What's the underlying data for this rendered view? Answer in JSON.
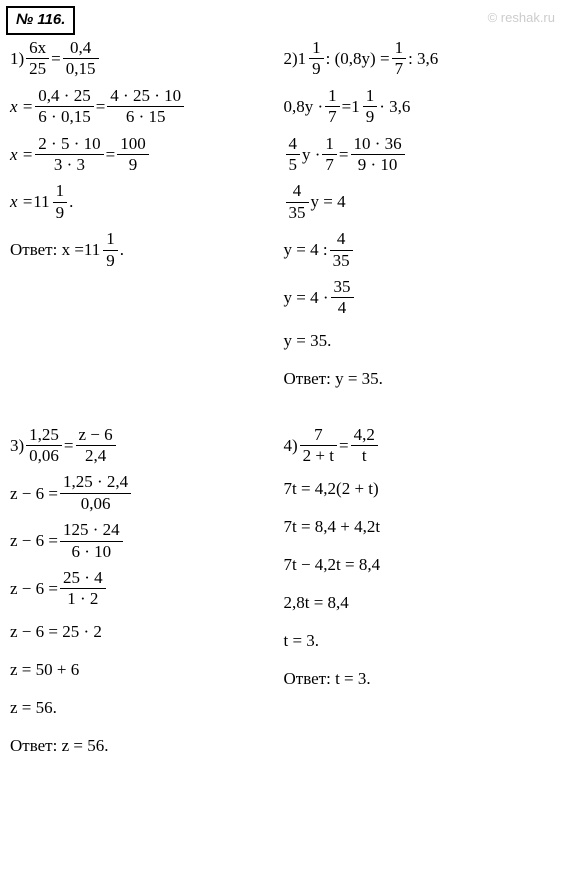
{
  "badge": "№ 116.",
  "watermark": "© reshak.ru",
  "colors": {
    "text": "#000000",
    "background": "#ffffff",
    "watermark": "#cccccc"
  },
  "typography": {
    "body_font": "Times New Roman",
    "body_fontsize": 17,
    "badge_font": "Arial",
    "badge_fontsize": 15
  },
  "p1": {
    "label": "1) ",
    "l1_f1n": "6x",
    "l1_f1d": "25",
    "l1_eq": " = ",
    "l1_f2n": "0,4",
    "l1_f2d": "0,15",
    "l2_a": "x = ",
    "l2_f1n": "0,4 · 25",
    "l2_f1d": "6 · 0,15",
    "l2_eq": " = ",
    "l2_f2n": "4 · 25 · 10",
    "l2_f2d": "6 · 15",
    "l3_a": "x = ",
    "l3_f1n": "2 · 5 · 10",
    "l3_f1d": "3 · 3",
    "l3_eq": " = ",
    "l3_f2n": "100",
    "l3_f2d": "9",
    "l4_a": "x = ",
    "l4_w": "11",
    "l4_n": "1",
    "l4_d": "9",
    "l4_p": ".",
    "ans_a": "Ответ: x = ",
    "ans_w": "11",
    "ans_n": "1",
    "ans_d": "9",
    "ans_p": "."
  },
  "p2": {
    "label": "2) ",
    "l1_w": "1",
    "l1_n": "1",
    "l1_d": "9",
    "l1_m": " : (0,8y) = ",
    "l1_f2n": "1",
    "l1_f2d": "7",
    "l1_e": " : 3,6",
    "l2_a": "0,8y · ",
    "l2_f1n": "1",
    "l2_f1d": "7",
    "l2_m": " = ",
    "l2_w": "1",
    "l2_n": "1",
    "l2_d": "9",
    "l2_e": " · 3,6",
    "l3_f1n": "4",
    "l3_f1d": "5",
    "l3_m1": " y · ",
    "l3_f2n": "1",
    "l3_f2d": "7",
    "l3_m2": " = ",
    "l3_f3n": "10 · 36",
    "l3_f3d": "9 · 10",
    "l4_f1n": "4",
    "l4_f1d": "35",
    "l4_e": " y = 4",
    "l5_a": "y = 4 : ",
    "l5_fn": "4",
    "l5_fd": "35",
    "l6_a": "y = 4 · ",
    "l6_fn": "35",
    "l6_fd": "4",
    "l7": "y = 35.",
    "ans": "Ответ: y = 35."
  },
  "p3": {
    "label": "3) ",
    "l1_f1n": "1,25",
    "l1_f1d": "0,06",
    "l1_eq": " = ",
    "l1_f2n": "z − 6",
    "l1_f2d": "2,4",
    "l2_a": "z − 6 = ",
    "l2_fn": "1,25 · 2,4",
    "l2_fd": "0,06",
    "l3_a": "z − 6 = ",
    "l3_fn": "125 · 24",
    "l3_fd": "6 · 10",
    "l4_a": "z − 6 = ",
    "l4_fn": "25 · 4",
    "l4_fd": "1 · 2",
    "l5": "z − 6 = 25 · 2",
    "l6": "z = 50 + 6",
    "l7": "z = 56.",
    "ans": "Ответ: z = 56."
  },
  "p4": {
    "label": "4) ",
    "l1_f1n": "7",
    "l1_f1d": "2 + t",
    "l1_eq": " = ",
    "l1_f2n": "4,2",
    "l1_f2d": "t",
    "l2": "7t = 4,2(2 + t)",
    "l3": "7t = 8,4 + 4,2t",
    "l4": "7t − 4,2t = 8,4",
    "l5": "2,8t = 8,4",
    "l6": "t = 3.",
    "ans": "Ответ: t = 3."
  }
}
